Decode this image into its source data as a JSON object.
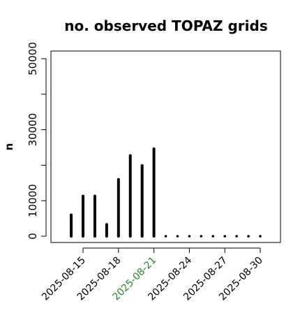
{
  "chart_data": {
    "type": "bar",
    "title": "no. observed TOPAZ grids",
    "xlabel": "",
    "ylabel": "n",
    "ylim": [
      0,
      54000
    ],
    "y_ticks": [
      0,
      10000,
      30000,
      50000
    ],
    "y_minor_ticks": [
      20000,
      40000
    ],
    "x_tick_labels": [
      {
        "label": "2025-08-15",
        "day": 15,
        "color": "#000000"
      },
      {
        "label": "2025-08-18",
        "day": 18,
        "color": "#000000"
      },
      {
        "label": "2025-08-21",
        "day": 21,
        "color": "#228B22"
      },
      {
        "label": "2025-08-24",
        "day": 24,
        "color": "#000000"
      },
      {
        "label": "2025-08-27",
        "day": 27,
        "color": "#000000"
      },
      {
        "label": "2025-08-30",
        "day": 30,
        "color": "#000000"
      }
    ],
    "x_range_days": [
      13,
      31.7
    ],
    "bars": [
      {
        "date": "2025-08-14",
        "day": 14,
        "value": 6000
      },
      {
        "date": "2025-08-15",
        "day": 15,
        "value": 11300
      },
      {
        "date": "2025-08-16",
        "day": 16,
        "value": 11300
      },
      {
        "date": "2025-08-17",
        "day": 17,
        "value": 3300
      },
      {
        "date": "2025-08-18",
        "day": 18,
        "value": 16000
      },
      {
        "date": "2025-08-19",
        "day": 19,
        "value": 22700
      },
      {
        "date": "2025-08-20",
        "day": 20,
        "value": 19900
      },
      {
        "date": "2025-08-21",
        "day": 21,
        "value": 24600
      },
      {
        "date": "2025-08-22",
        "day": 22,
        "value": 0
      },
      {
        "date": "2025-08-23",
        "day": 23,
        "value": 0
      },
      {
        "date": "2025-08-24",
        "day": 24,
        "value": 0
      },
      {
        "date": "2025-08-25",
        "day": 25,
        "value": 0
      },
      {
        "date": "2025-08-26",
        "day": 26,
        "value": 0
      },
      {
        "date": "2025-08-27",
        "day": 27,
        "value": 0
      },
      {
        "date": "2025-08-28",
        "day": 28,
        "value": 0
      },
      {
        "date": "2025-08-29",
        "day": 29,
        "value": 0
      },
      {
        "date": "2025-08-30",
        "day": 30,
        "value": 0
      }
    ],
    "grid": false,
    "bar_color": "#000000"
  }
}
